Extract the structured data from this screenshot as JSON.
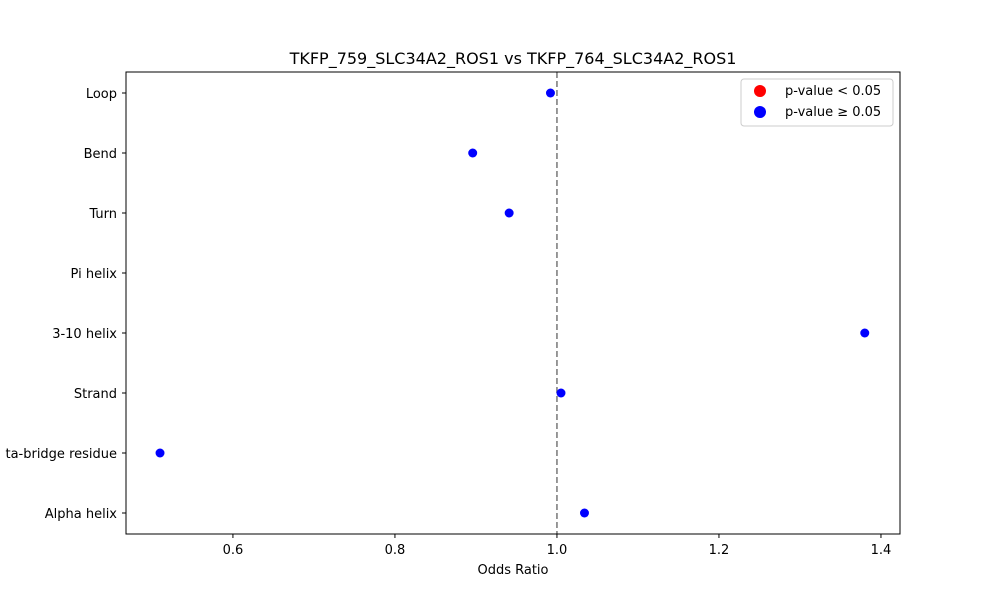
{
  "chart_data": {
    "type": "scatter",
    "title": "TKFP_759_SLC34A2_ROS1 vs TKFP_764_SLC34A2_ROS1",
    "xlabel": "Odds Ratio",
    "ylabel": "",
    "xlim": [
      0.468,
      1.4235
    ],
    "xticks": [
      0.6,
      0.8,
      1.0,
      1.2,
      1.4
    ],
    "xtick_labels": [
      "0.6",
      "0.8",
      "1.0",
      "1.2",
      "1.4"
    ],
    "categories": [
      "Loop",
      "Bend",
      "Turn",
      "Pi helix",
      "3-10 helix",
      "Strand",
      "Isolated beta-bridge residue",
      "Alpha helix"
    ],
    "category_labels_visible": [
      "Loop",
      "Bend",
      "Turn",
      "Pi helix",
      "3-10 helix",
      "Strand",
      "ta-bridge residue",
      "Alpha helix"
    ],
    "values": [
      0.992,
      0.896,
      0.941,
      null,
      1.38,
      1.005,
      0.51,
      1.034
    ],
    "significant": [
      false,
      false,
      false,
      null,
      false,
      false,
      false,
      false
    ],
    "reference_line": {
      "x": 1.0,
      "style": "dashed",
      "color": "#808080"
    },
    "grid": false,
    "legend": {
      "position": "upper right",
      "entries": [
        {
          "label": "p-value < 0.05",
          "color": "#ff0000"
        },
        {
          "label": "p-value ≥ 0.05",
          "color": "#0000ff"
        }
      ]
    }
  },
  "colors": {
    "significant": "#ff0000",
    "not_significant": "#0000ff",
    "refline": "#808080",
    "axes": "#000000"
  }
}
